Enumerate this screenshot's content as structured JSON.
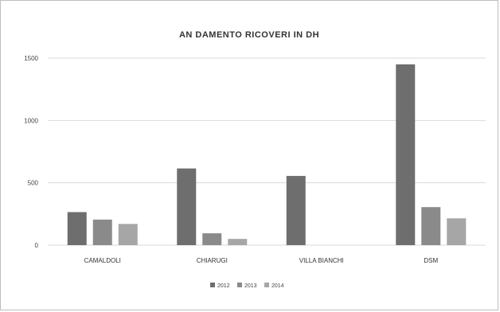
{
  "chart_data": {
    "type": "bar",
    "title": "AN DAMENTO RICOVERI IN DH",
    "categories": [
      "CAMALDOLI",
      "CHIARUGI",
      "VILLA BIANCHI",
      "DSM"
    ],
    "series": [
      {
        "name": "2012",
        "values": [
          265,
          615,
          555,
          1450
        ],
        "color": "#6e6e6e"
      },
      {
        "name": "2013",
        "values": [
          205,
          95,
          0,
          305
        ],
        "color": "#8a8a8a"
      },
      {
        "name": "2014",
        "values": [
          170,
          50,
          0,
          215
        ],
        "color": "#a6a6a6"
      }
    ],
    "yticks": [
      "0",
      "500",
      "1000",
      "1500"
    ],
    "ylim": [
      0,
      1500
    ],
    "grid": true,
    "legend": "bottom",
    "xlabel": "",
    "ylabel": ""
  }
}
